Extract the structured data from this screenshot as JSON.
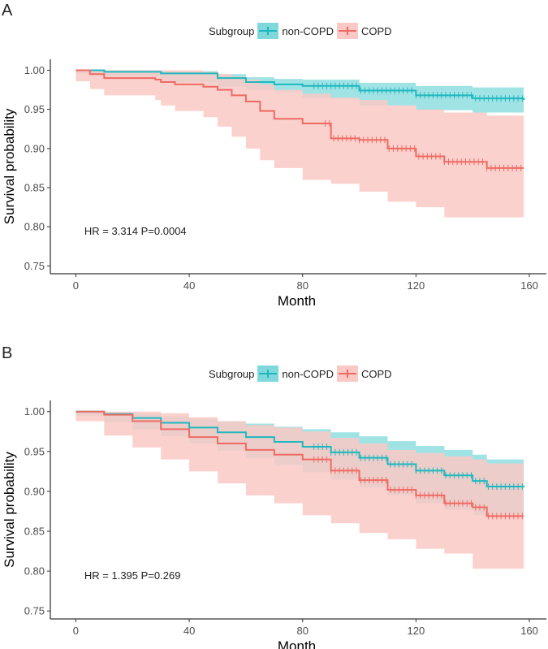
{
  "colors": {
    "non_copd": "#1fb8be",
    "copd": "#ee6b63",
    "non_copd_band": "#7fd9dc",
    "copd_band": "#fac9c6"
  },
  "chart_data": [
    {
      "panel": "A",
      "type": "line",
      "title": "",
      "xlabel": "Month",
      "ylabel": "Survival probability",
      "xlim": [
        -9,
        166
      ],
      "ylim": [
        0.74,
        1.014
      ],
      "xticks": [
        0,
        40,
        80,
        120,
        160
      ],
      "xtick_labels": [
        "0",
        "40",
        "80",
        "120",
        "160"
      ],
      "yticks": [
        0.75,
        0.8,
        0.85,
        0.9,
        0.95,
        1.0
      ],
      "ytick_labels": [
        "0.75",
        "0.80",
        "0.85",
        "0.90",
        "0.95",
        "1.00"
      ],
      "legend_title": "Subgroup",
      "legend_position": "top",
      "annotation": "HR = 3.314 P=0.0004",
      "series": [
        {
          "name": "non-COPD",
          "color_key": "non_copd",
          "x": [
            0,
            10,
            30,
            50,
            60,
            70,
            80,
            100,
            120,
            140,
            158
          ],
          "y": [
            1.0,
            0.998,
            0.996,
            0.99,
            0.985,
            0.982,
            0.98,
            0.974,
            0.968,
            0.964,
            0.962
          ],
          "lower": [
            1.0,
            0.996,
            0.992,
            0.985,
            0.979,
            0.975,
            0.972,
            0.964,
            0.955,
            0.949,
            0.946
          ],
          "upper": [
            1.0,
            1.0,
            0.999,
            0.995,
            0.991,
            0.989,
            0.988,
            0.984,
            0.98,
            0.978,
            0.976
          ],
          "censor_range": [
            84,
            158
          ]
        },
        {
          "name": "COPD",
          "color_key": "copd",
          "x": [
            0,
            5,
            10,
            28,
            30,
            35,
            45,
            50,
            55,
            60,
            65,
            70,
            80,
            90,
            100,
            110,
            120,
            130,
            145,
            158
          ],
          "y": [
            1.0,
            0.995,
            0.99,
            0.988,
            0.985,
            0.982,
            0.979,
            0.975,
            0.968,
            0.96,
            0.948,
            0.938,
            0.932,
            0.913,
            0.911,
            0.9,
            0.89,
            0.883,
            0.875,
            0.875
          ],
          "lower": [
            1.0,
            0.986,
            0.976,
            0.968,
            0.962,
            0.955,
            0.948,
            0.94,
            0.928,
            0.915,
            0.9,
            0.885,
            0.875,
            0.86,
            0.855,
            0.845,
            0.832,
            0.825,
            0.812,
            0.812
          ],
          "upper": [
            1.0,
            1.0,
            1.0,
            1.0,
            1.0,
            1.0,
            0.998,
            0.995,
            0.992,
            0.988,
            0.982,
            0.975,
            0.97,
            0.965,
            0.962,
            0.955,
            0.95,
            0.946,
            0.942,
            0.94
          ],
          "censor_range": [
            88,
            158
          ]
        }
      ]
    },
    {
      "panel": "B",
      "type": "line",
      "title": "",
      "xlabel": "Month",
      "ylabel": "Survival probability",
      "xlim": [
        -9,
        166
      ],
      "ylim": [
        0.74,
        1.014
      ],
      "xticks": [
        0,
        40,
        80,
        120,
        160
      ],
      "xtick_labels": [
        "0",
        "40",
        "80",
        "120",
        "160"
      ],
      "yticks": [
        0.75,
        0.8,
        0.85,
        0.9,
        0.95,
        1.0
      ],
      "ytick_labels": [
        "0.75",
        "0.80",
        "0.85",
        "0.90",
        "0.95",
        "1.00"
      ],
      "legend_title": "Subgroup",
      "legend_position": "top",
      "annotation": "HR = 1.395 P=0.269",
      "series": [
        {
          "name": "non-COPD",
          "color_key": "non_copd",
          "x": [
            0,
            10,
            20,
            30,
            40,
            50,
            60,
            70,
            80,
            90,
            100,
            110,
            120,
            130,
            140,
            145,
            158
          ],
          "y": [
            1.0,
            0.997,
            0.992,
            0.986,
            0.98,
            0.974,
            0.968,
            0.962,
            0.956,
            0.949,
            0.942,
            0.934,
            0.926,
            0.92,
            0.913,
            0.906,
            0.905
          ],
          "lower": [
            1.0,
            0.995,
            0.987,
            0.978,
            0.969,
            0.96,
            0.951,
            0.942,
            0.933,
            0.924,
            0.915,
            0.905,
            0.895,
            0.885,
            0.877,
            0.87,
            0.87
          ],
          "upper": [
            1.0,
            0.999,
            0.997,
            0.994,
            0.991,
            0.988,
            0.985,
            0.981,
            0.978,
            0.974,
            0.969,
            0.963,
            0.957,
            0.952,
            0.946,
            0.94,
            0.938
          ],
          "censor_range": [
            84,
            158
          ]
        },
        {
          "name": "COPD",
          "color_key": "copd",
          "x": [
            0,
            10,
            20,
            30,
            40,
            50,
            60,
            70,
            80,
            90,
            100,
            110,
            120,
            130,
            140,
            145,
            158
          ],
          "y": [
            1.0,
            0.996,
            0.988,
            0.978,
            0.968,
            0.96,
            0.952,
            0.946,
            0.94,
            0.926,
            0.914,
            0.902,
            0.895,
            0.885,
            0.88,
            0.869,
            0.869
          ],
          "lower": [
            1.0,
            0.988,
            0.97,
            0.955,
            0.94,
            0.925,
            0.91,
            0.895,
            0.885,
            0.87,
            0.86,
            0.848,
            0.84,
            0.828,
            0.822,
            0.803,
            0.803
          ],
          "upper": [
            1.0,
            1.0,
            1.0,
            0.998,
            0.993,
            0.988,
            0.983,
            0.98,
            0.975,
            0.967,
            0.96,
            0.952,
            0.948,
            0.944,
            0.94,
            0.935,
            0.935
          ],
          "censor_range": [
            84,
            158
          ]
        }
      ]
    }
  ]
}
